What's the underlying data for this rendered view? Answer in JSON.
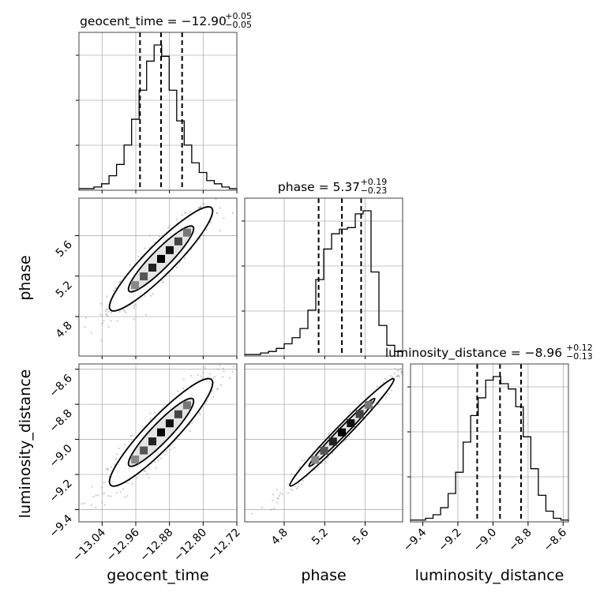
{
  "chart_data": {
    "type": "corner",
    "parameters": [
      {
        "name": "geocent_time",
        "title_text": "geocent_time = −12.90",
        "title_sup": "+0.05",
        "title_sub": "−0.05",
        "median": -12.9,
        "q_low": -12.95,
        "q_high": -12.85,
        "range": [
          -13.095,
          -12.72
        ],
        "ticks": [
          -13.04,
          -12.96,
          -12.88,
          -12.8,
          -12.72
        ],
        "tick_labels": [
          "−13.04",
          "−12.96",
          "−12.88",
          "−12.80",
          "−12.72"
        ],
        "axis_label": "geocent_time"
      },
      {
        "name": "phase",
        "title_text": "phase = 5.37",
        "title_sup": "+0.19",
        "title_sub": "−0.23",
        "median": 5.37,
        "q_low": 5.14,
        "q_high": 5.56,
        "range": [
          4.41,
          5.97
        ],
        "ticks": [
          4.8,
          5.2,
          5.6
        ],
        "tick_labels": [
          "4.8",
          "5.2",
          "5.6"
        ],
        "axis_label": "phase"
      },
      {
        "name": "luminosity_distance",
        "title_text": "luminosity_distance = −8.96",
        "title_sup": "+0.12",
        "title_sub": "−0.13",
        "median": -8.96,
        "q_low": -9.09,
        "q_high": -8.84,
        "range": [
          -9.47,
          -8.57
        ],
        "ticks": [
          -9.4,
          -9.2,
          -9.0,
          -8.8,
          -8.6
        ],
        "tick_labels": [
          "−9.4",
          "−9.2",
          "−9.0",
          "−8.8",
          "−8.6"
        ],
        "axis_label": "luminosity_distance"
      }
    ],
    "histograms": [
      {
        "param": "geocent_time",
        "values": [
          1,
          1,
          2,
          4,
          9,
          16,
          28,
          44,
          62,
          80,
          90,
          83,
          62,
          43,
          28,
          17,
          11,
          6,
          4,
          2,
          1
        ]
      },
      {
        "param": "phase",
        "values": [
          1,
          1,
          2,
          3,
          5,
          8,
          12,
          18,
          30,
          50,
          70,
          80,
          83,
          84,
          93,
          95,
          55,
          20,
          7,
          3
        ]
      },
      {
        "param": "luminosity_distance",
        "values": [
          1,
          1,
          2,
          4,
          8,
          16,
          28,
          45,
          60,
          70,
          80,
          82,
          78,
          75,
          65,
          48,
          30,
          15,
          6,
          2,
          1
        ]
      }
    ],
    "joint_2d": [
      {
        "x": "geocent_time",
        "y": "phase",
        "slope_y_per_x": 4.2,
        "corr": 0.92
      },
      {
        "x": "geocent_time",
        "y": "luminosity_distance",
        "slope_y_per_x": 2.4,
        "corr": 0.92
      },
      {
        "x": "phase",
        "y": "luminosity_distance",
        "slope_y_per_x": 0.57,
        "corr": 0.985
      }
    ],
    "style": {
      "line_color": "#000000",
      "grid_color": "#b0b0b0",
      "point_color": "#9a9a9a",
      "quantile_line": "dashed"
    }
  }
}
